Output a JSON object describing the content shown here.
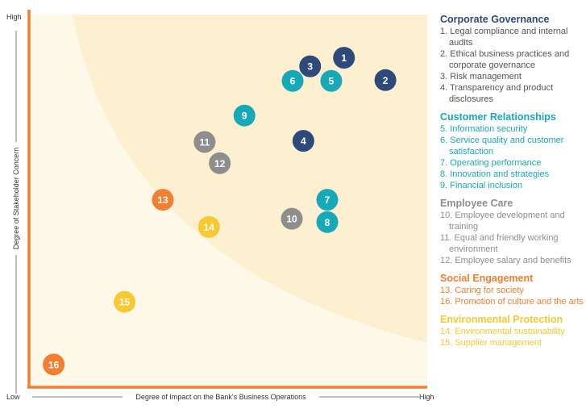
{
  "colors": {
    "axis": "#f07f32",
    "zone_outer": "#fef8e8",
    "zone_inner": "#fdf0d1",
    "gray_text": "#555555",
    "corporate": "#2d4a7a",
    "customer": "#17a9b8",
    "employee": "#8e8e8e",
    "social": "#f07f32",
    "environmental": "#f7c932"
  },
  "chart_data": {
    "type": "scatter",
    "x_label": "Degree of Impact on the Bank's Business Operations",
    "y_label": "Degree of Stakeholder Concern",
    "x_low": "Low",
    "x_high": "High",
    "y_high": "High",
    "xlim": [
      0,
      1
    ],
    "ylim": [
      0,
      1
    ],
    "grid": false,
    "legend_position": "right",
    "points": [
      {
        "id": "1",
        "x": 0.791,
        "y": 0.884,
        "group": "corporate"
      },
      {
        "id": "2",
        "x": 0.895,
        "y": 0.824,
        "group": "corporate"
      },
      {
        "id": "3",
        "x": 0.706,
        "y": 0.861,
        "group": "corporate"
      },
      {
        "id": "4",
        "x": 0.689,
        "y": 0.661,
        "group": "corporate"
      },
      {
        "id": "5",
        "x": 0.759,
        "y": 0.822,
        "group": "customer"
      },
      {
        "id": "6",
        "x": 0.662,
        "y": 0.822,
        "group": "customer"
      },
      {
        "id": "7",
        "x": 0.749,
        "y": 0.503,
        "group": "customer"
      },
      {
        "id": "8",
        "x": 0.749,
        "y": 0.443,
        "group": "customer"
      },
      {
        "id": "9",
        "x": 0.541,
        "y": 0.729,
        "group": "customer"
      },
      {
        "id": "10",
        "x": 0.66,
        "y": 0.452,
        "group": "employee"
      },
      {
        "id": "11",
        "x": 0.441,
        "y": 0.658,
        "group": "employee"
      },
      {
        "id": "12",
        "x": 0.479,
        "y": 0.601,
        "group": "employee"
      },
      {
        "id": "13",
        "x": 0.336,
        "y": 0.503,
        "group": "social"
      },
      {
        "id": "14",
        "x": 0.452,
        "y": 0.43,
        "group": "environmental"
      },
      {
        "id": "15",
        "x": 0.24,
        "y": 0.229,
        "group": "environmental"
      },
      {
        "id": "16",
        "x": 0.062,
        "y": 0.061,
        "group": "social"
      }
    ]
  },
  "legend": [
    {
      "key": "corporate",
      "title": "Corporate Governance",
      "title_color": "#2d4a7a",
      "item_color": "#555555",
      "items": [
        "1. Legal compliance and internal audits",
        "2. Ethical business practices and corporate governance",
        "3. Risk management",
        "4. Transparency and product disclosures"
      ]
    },
    {
      "key": "customer",
      "title": "Customer Relationships",
      "title_color": "#17a9b8",
      "item_color": "#17a9b8",
      "items": [
        "5. Information security",
        "6. Service quality and customer satisfaction",
        "7. Operating performance",
        "8. Innovation and strategies",
        "9. Financial inclusion"
      ]
    },
    {
      "key": "employee",
      "title": "Employee Care",
      "title_color": "#8e8e8e",
      "item_color": "#8e8e8e",
      "items": [
        "10. Employee development and training",
        "11. Equal and friendly working environment",
        "12. Employee salary and benefits"
      ]
    },
    {
      "key": "social",
      "title": "Social Engagement",
      "title_color": "#f07f32",
      "item_color": "#f07f32",
      "items": [
        "13. Caring for society",
        "16. Promotion of culture and the arts"
      ]
    },
    {
      "key": "environmental",
      "title": "Environmental Protection",
      "title_color": "#f7c932",
      "item_color": "#f7c932",
      "items": [
        "14. Environmental sustainability",
        "15. Supplier management"
      ]
    }
  ]
}
